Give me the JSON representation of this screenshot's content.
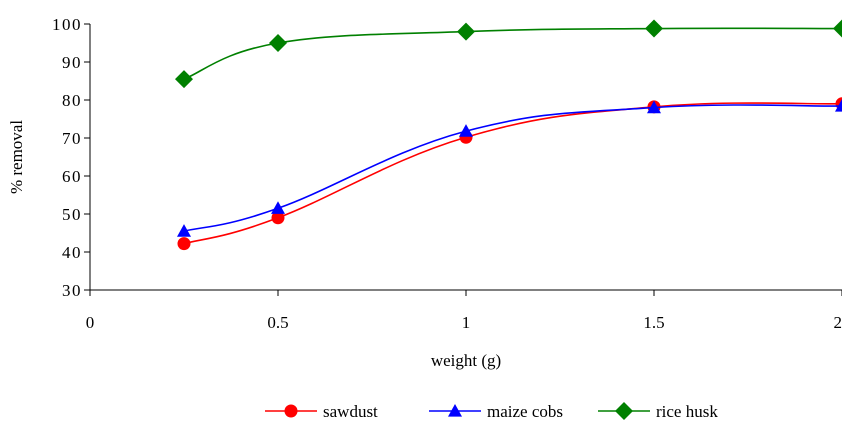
{
  "chart_data": {
    "type": "line",
    "title": "",
    "xlabel": "weight (g)",
    "ylabel": "% removal",
    "xlim": [
      0,
      2
    ],
    "ylim": [
      30,
      100
    ],
    "x_ticks": [
      0,
      0.5,
      1,
      1.5,
      2
    ],
    "x_tick_labels": [
      "0",
      "0.5",
      "1",
      "1.5",
      "2"
    ],
    "y_ticks": [
      30,
      40,
      50,
      60,
      70,
      80,
      90,
      100
    ],
    "y_tick_labels": [
      "30",
      "40",
      "50",
      "60",
      "70",
      "80",
      "90",
      "100"
    ],
    "grid": false,
    "smooth": true,
    "legend_position": "bottom",
    "series": [
      {
        "name": "sawdust",
        "color": "#ff0000",
        "marker": "circle",
        "x": [
          0.25,
          0.5,
          1,
          1.5,
          2
        ],
        "y": [
          42.2,
          49,
          70.2,
          78.2,
          79
        ]
      },
      {
        "name": "maize cobs",
        "color": "#0000ff",
        "marker": "triangle",
        "x": [
          0.25,
          0.5,
          1,
          1.5,
          2
        ],
        "y": [
          45.5,
          51.5,
          71.8,
          78,
          78.4
        ]
      },
      {
        "name": "rice husk",
        "color": "#008000",
        "marker": "diamond",
        "x": [
          0.25,
          0.5,
          1,
          1.5,
          2
        ],
        "y": [
          85.5,
          95,
          98,
          98.8,
          98.8
        ]
      }
    ]
  }
}
